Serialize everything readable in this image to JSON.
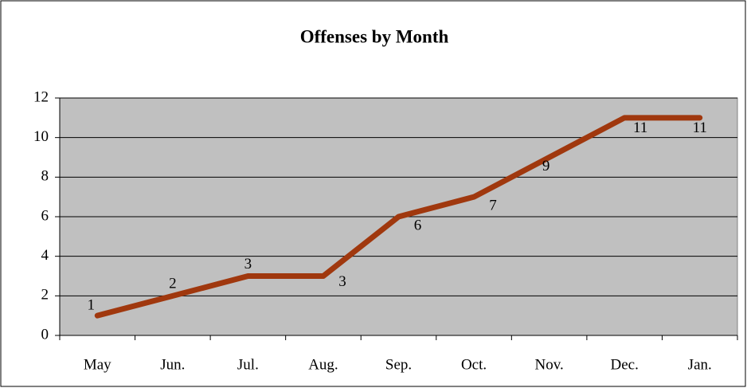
{
  "chart_data": {
    "type": "line",
    "title": "Offenses by Month",
    "categories": [
      "May",
      "Jun.",
      "Jul.",
      "Aug.",
      "Sep.",
      "Oct.",
      "Nov.",
      "Dec.",
      "Jan."
    ],
    "series": [
      {
        "name": "Offenses",
        "color": "#a0380e",
        "values": [
          1,
          2,
          3,
          3,
          6,
          7,
          9,
          11,
          11
        ]
      }
    ],
    "ylim": [
      0,
      12
    ],
    "yticks": [
      0,
      2,
      4,
      6,
      8,
      10,
      12
    ],
    "grid": true,
    "plot_background": "#c0c0c0"
  }
}
